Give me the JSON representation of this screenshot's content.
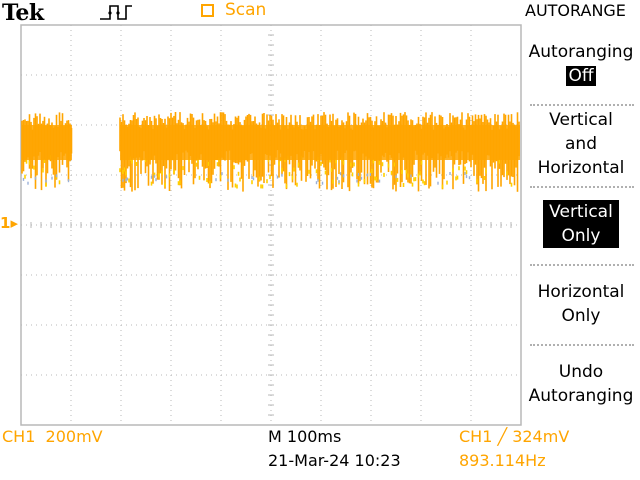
{
  "header": {
    "brand": "Tek",
    "acquisition_state": "Scan",
    "menu_title": "AUTORANGE",
    "trigger_icon": "trigger-pulse-icon"
  },
  "menu": {
    "autoranging_label": "Autoranging",
    "autoranging_value": "Off",
    "items": [
      {
        "line1": "Vertical",
        "line2": "and",
        "line3": "Horizontal"
      },
      {
        "line1": "Vertical",
        "line2": "Only"
      },
      {
        "line1": "Horizontal",
        "line2": "Only"
      },
      {
        "line1": "Undo",
        "line2": "Autoranging"
      }
    ],
    "selected_item": "Vertical Only"
  },
  "channel_marker": "1",
  "readouts": {
    "ch1_scale": "CH1  200mV",
    "timebase": "M 100ms",
    "datetime": "21-Mar-24 10:23",
    "trigger": "CH1 ╱ 324mV",
    "frequency": "893.114Hz"
  },
  "colors": {
    "ch1": "#ffa500",
    "trace_secondary": "#ffd000",
    "trace_tertiary": "#9ab0d8",
    "grid": "#b8b8b8",
    "menu_highlight": "#000000"
  }
}
